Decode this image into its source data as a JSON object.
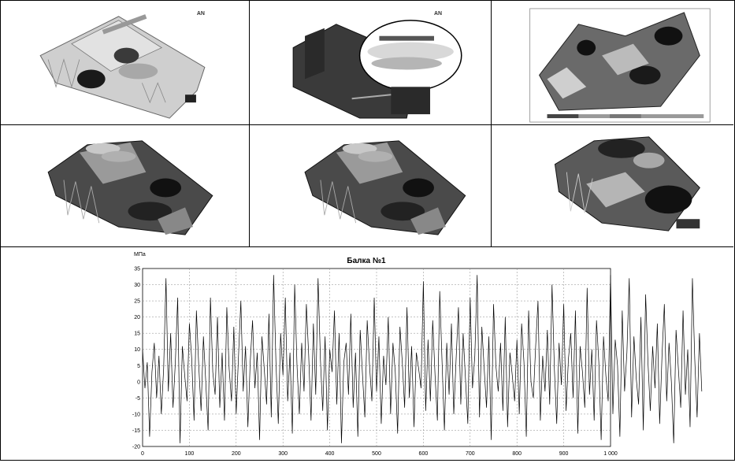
{
  "figure": {
    "panels": [
      {
        "id": "p1",
        "logo_text": "AN"
      },
      {
        "id": "p2",
        "logo_text": "AN"
      },
      {
        "id": "p3",
        "logo_text": ""
      },
      {
        "id": "p4",
        "logo_text": ""
      },
      {
        "id": "p5",
        "logo_text": ""
      },
      {
        "id": "p6",
        "logo_text": ""
      }
    ]
  },
  "chart_data": {
    "type": "line",
    "title": "Балка №1",
    "ylabel": "МПа",
    "xlabel": "",
    "xlim": [
      0,
      1000
    ],
    "ylim": [
      -20,
      35
    ],
    "x_ticks": [
      "0",
      "100",
      "200",
      "300",
      "400",
      "500",
      "600",
      "700",
      "800",
      "900",
      "1 000"
    ],
    "y_ticks": [
      "35",
      "30",
      "25",
      "20",
      "15",
      "10",
      "5",
      "0",
      "-5",
      "-10",
      "-15",
      "-20"
    ],
    "grid": true,
    "series": [
      {
        "name": "",
        "color": "#000000",
        "x_step": 5,
        "values": [
          10,
          -2,
          6,
          -17,
          3,
          12,
          -5,
          8,
          -10,
          4,
          32,
          -3,
          15,
          -8,
          6,
          26,
          -19,
          11,
          2,
          -6,
          18,
          7,
          -12,
          22,
          5,
          -9,
          14,
          0,
          -15,
          26,
          3,
          -4,
          20,
          -8,
          9,
          -12,
          23,
          4,
          -6,
          17,
          -10,
          8,
          25,
          -3,
          11,
          -14,
          6,
          19,
          -2,
          9,
          -18,
          14,
          4,
          -7,
          21,
          -11,
          33,
          6,
          -13,
          15,
          2,
          26,
          -6,
          9,
          -16,
          30,
          5,
          -10,
          12,
          -3,
          24,
          8,
          -12,
          18,
          -4,
          32,
          7,
          -9,
          14,
          -15,
          10,
          3,
          22,
          -7,
          15,
          -19,
          6,
          12,
          -4,
          21,
          -8,
          9,
          -17,
          16,
          2,
          -11,
          19,
          5,
          -6,
          26,
          -3,
          14,
          -13,
          8,
          -1,
          20,
          -10,
          12,
          3,
          -16,
          17,
          6,
          -8,
          23,
          -5,
          11,
          -14,
          9,
          4,
          -2,
          31,
          -9,
          13,
          -6,
          19,
          2,
          -12,
          28,
          6,
          -15,
          12,
          -4,
          18,
          -10,
          7,
          23,
          -7,
          15,
          1,
          -13,
          26,
          -2,
          8,
          33,
          -11,
          17,
          4,
          -8,
          14,
          -18,
          24,
          5,
          -3,
          12,
          -9,
          20,
          -14,
          9,
          2,
          -6,
          13,
          -10,
          18,
          6,
          -17,
          22,
          0,
          -5,
          11,
          25,
          -12,
          8,
          -3,
          16,
          -7,
          30,
          4,
          -13,
          12,
          -1,
          24,
          -9,
          7,
          15,
          -5,
          22,
          -16,
          11,
          3,
          -8,
          29,
          -4,
          10,
          -12,
          19,
          6,
          -18,
          14,
          2,
          -6,
          33,
          -10,
          13,
          5,
          -17,
          22,
          -3,
          9,
          32,
          -11,
          14,
          1,
          -7,
          20,
          -15,
          27,
          6,
          -9,
          11,
          -2,
          18,
          -13,
          8,
          24,
          -6,
          12,
          0,
          -19,
          16,
          4,
          -8,
          22,
          -4,
          10,
          -14,
          32,
          7,
          -11,
          15,
          -3
        ]
      }
    ]
  }
}
